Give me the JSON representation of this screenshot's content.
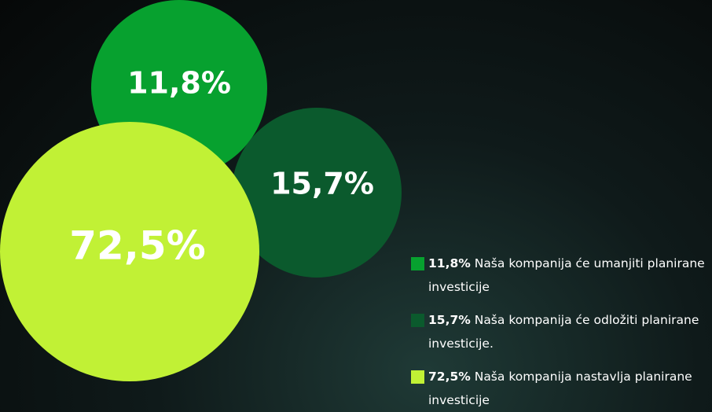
{
  "chart_data": {
    "type": "bubble",
    "categories": [
      "Naša kompanija će umanjiti planirane investicije",
      "Naša kompanija će odložiti planirane investicije.",
      "Naša kompanija nastavlja planirane investicije"
    ],
    "values": [
      11.8,
      15.7,
      72.5
    ],
    "value_labels": [
      "11,8%",
      "15,7%",
      "72,5%"
    ],
    "colors": [
      "#07a12f",
      "#0b5a2d",
      "#c1f135"
    ]
  }
}
